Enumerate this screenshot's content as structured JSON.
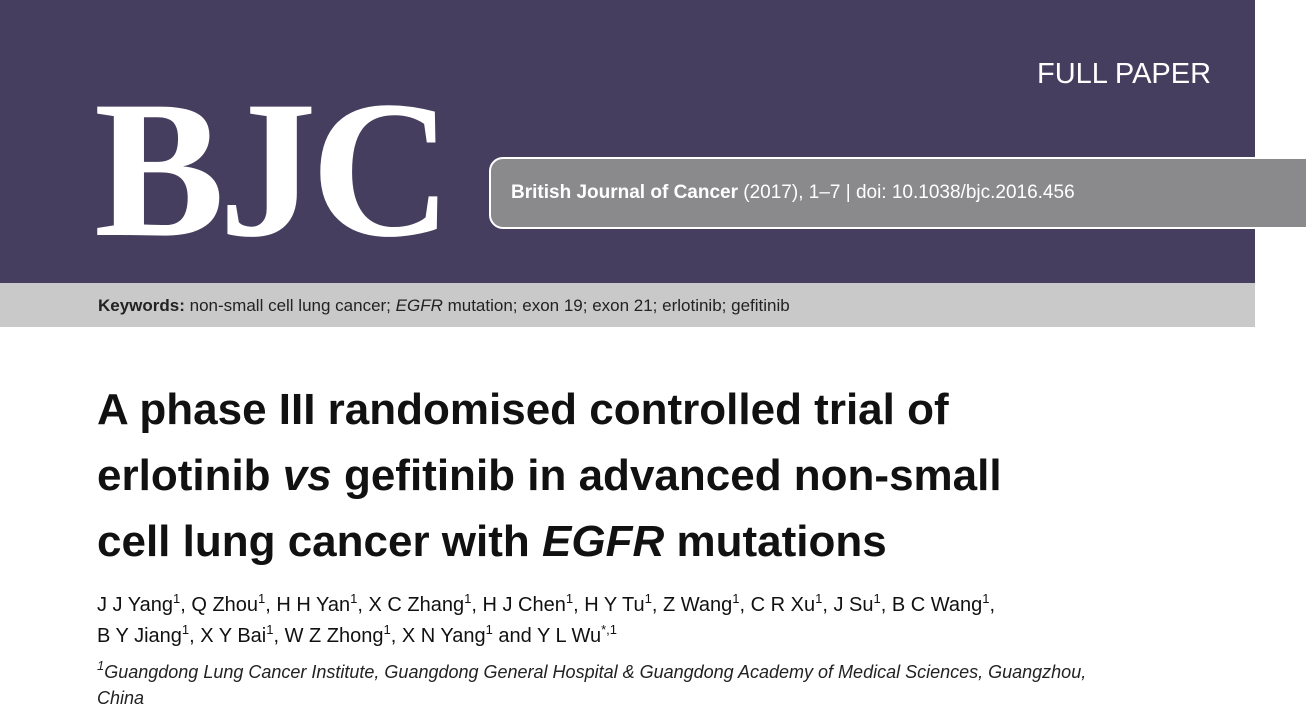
{
  "header": {
    "logo": "BJC",
    "label": "FULL PAPER",
    "citation": {
      "journal": "British Journal of Cancer",
      "details": " (2017), 1–7 | doi: 10.1038/bjc.2016.456"
    }
  },
  "keywords": {
    "label": "Keywords:",
    "runs": [
      " non-small cell lung cancer; ",
      "EGFR",
      " mutation; exon 19; exon 21; erlotinib; gefitinib"
    ]
  },
  "title": {
    "lines": [
      [
        "A phase III randomised controlled trial of"
      ],
      [
        "erlotinib ",
        "vs",
        " gefitinib in advanced non-small"
      ],
      [
        "cell lung cancer with ",
        "EGFR",
        " mutations"
      ]
    ]
  },
  "authors": {
    "separator": ", ",
    "conjunction": " and ",
    "list": [
      {
        "name": "J J Yang",
        "affiliation": "1"
      },
      {
        "name": "Q Zhou",
        "affiliation": "1"
      },
      {
        "name": "H H Yan",
        "affiliation": "1"
      },
      {
        "name": "X C Zhang",
        "affiliation": "1"
      },
      {
        "name": "H J Chen",
        "affiliation": "1"
      },
      {
        "name": "H Y Tu",
        "affiliation": "1"
      },
      {
        "name": "Z Wang",
        "affiliation": "1"
      },
      {
        "name": "C R Xu",
        "affiliation": "1"
      },
      {
        "name": "J Su",
        "affiliation": "1"
      },
      {
        "name": "B C Wang",
        "affiliation": "1"
      },
      {
        "name": "B Y Jiang",
        "affiliation": "1"
      },
      {
        "name": "X Y Bai",
        "affiliation": "1"
      },
      {
        "name": "W Z Zhong",
        "affiliation": "1"
      },
      {
        "name": "X N Yang",
        "affiliation": "1"
      },
      {
        "name": "Y L Wu",
        "affiliation": "*,1"
      }
    ]
  },
  "affiliation": {
    "marker": "1",
    "lines": [
      "Guangdong Lung Cancer Institute, Guangdong General Hospital & Guangdong Academy of Medical Sciences, Guangzhou,",
      "China"
    ]
  }
}
